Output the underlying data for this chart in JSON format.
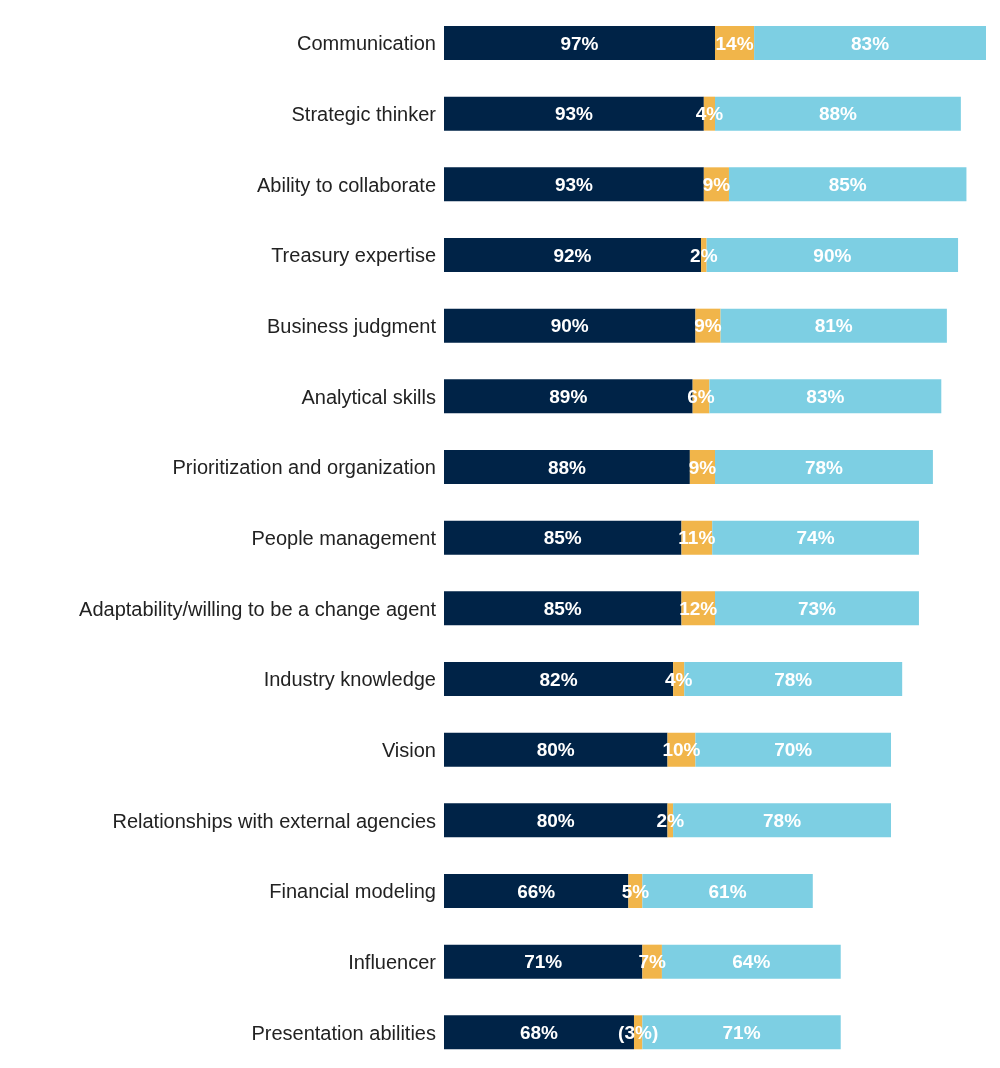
{
  "chart_data": {
    "type": "bar",
    "orientation": "horizontal",
    "stacked": true,
    "categories": [
      "Communication",
      "Strategic thinker",
      "Ability to collaborate",
      "Treasury expertise",
      "Business judgment",
      "Analytical skills",
      "Prioritization and organization",
      "People management",
      "Adaptability/willing to be a change agent",
      "Industry knowledge",
      "Vision",
      "Relationships with external agencies",
      "Financial modeling",
      "Influencer",
      "Presentation abilities"
    ],
    "series": [
      {
        "color": "#002347",
        "values": [
          97,
          93,
          93,
          92,
          90,
          89,
          88,
          85,
          85,
          82,
          80,
          80,
          66,
          71,
          68
        ],
        "value_labels": [
          "97%",
          "93%",
          "93%",
          "92%",
          "90%",
          "89%",
          "88%",
          "85%",
          "85%",
          "82%",
          "80%",
          "80%",
          "66%",
          "71%",
          "68%"
        ]
      },
      {
        "color": "#f1b54a",
        "values": [
          14,
          4,
          9,
          2,
          9,
          6,
          9,
          11,
          12,
          4,
          10,
          2,
          5,
          7,
          3
        ],
        "value_labels": [
          "14%",
          "4%",
          "9%",
          "2%",
          "9%",
          "6%",
          "9%",
          "11%",
          "12%",
          "4%",
          "10%",
          "2%",
          "5%",
          "7%",
          "(3%)"
        ]
      },
      {
        "color": "#7dcfe3",
        "values": [
          83,
          88,
          85,
          90,
          81,
          83,
          78,
          74,
          73,
          78,
          70,
          78,
          61,
          64,
          71
        ],
        "value_labels": [
          "83%",
          "88%",
          "85%",
          "90%",
          "81%",
          "83%",
          "78%",
          "74%",
          "73%",
          "78%",
          "70%",
          "78%",
          "61%",
          "64%",
          "71%"
        ]
      }
    ]
  }
}
